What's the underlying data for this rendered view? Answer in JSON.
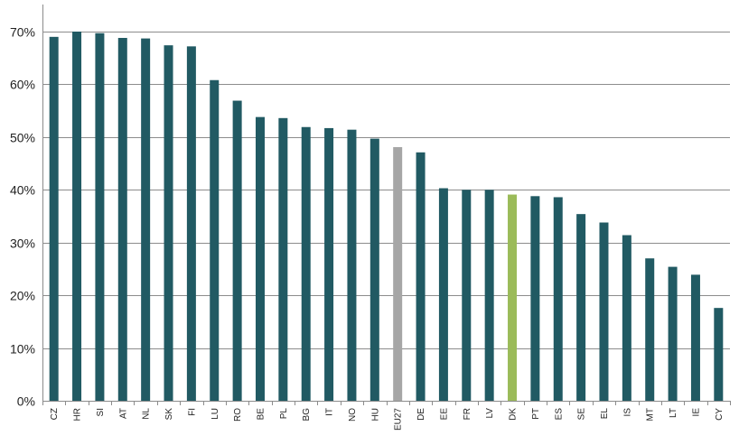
{
  "chart_data": {
    "type": "bar",
    "title": "",
    "xlabel": "",
    "ylabel": "",
    "ylim": [
      0,
      70
    ],
    "y_ticks": [
      0,
      10,
      20,
      30,
      40,
      50,
      60,
      70
    ],
    "y_tick_labels": [
      "0%",
      "10%",
      "20%",
      "30%",
      "40%",
      "50%",
      "60%",
      "70%"
    ],
    "grid": true,
    "categories": [
      "CZ",
      "HR",
      "SI",
      "AT",
      "NL",
      "SK",
      "FI",
      "LU",
      "RO",
      "BE",
      "PL",
      "BG",
      "IT",
      "NO",
      "HU",
      "EU27",
      "DE",
      "EE",
      "FR",
      "LV",
      "DK",
      "PT",
      "ES",
      "SE",
      "EL",
      "IS",
      "MT",
      "LT",
      "IE",
      "CY"
    ],
    "values": [
      69.0,
      70.0,
      69.7,
      68.8,
      68.7,
      67.4,
      67.2,
      60.8,
      56.9,
      53.8,
      53.6,
      51.9,
      51.7,
      51.4,
      49.7,
      48.1,
      47.1,
      40.3,
      40.0,
      40.0,
      39.1,
      38.8,
      38.6,
      35.4,
      33.8,
      31.4,
      27.0,
      25.4,
      23.9,
      17.6
    ],
    "colors": {
      "default": "#215a63",
      "EU27": "#a6a6a6",
      "DK": "#9bbb59",
      "grid": "#8c8c8c",
      "axis": "#8c8c8c"
    }
  }
}
